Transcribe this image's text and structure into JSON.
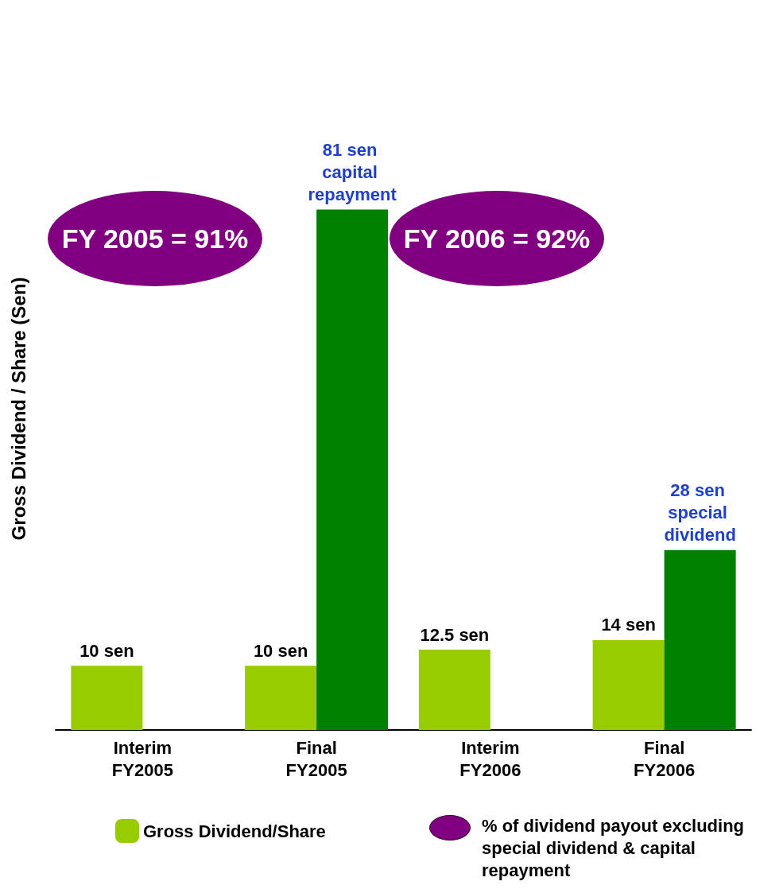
{
  "chart_data": {
    "type": "bar",
    "ylabel": "Gross Dividend / Share (Sen)",
    "categories": [
      "Interim FY2005",
      "Final FY2005",
      "Interim FY2006",
      "Final FY2006"
    ],
    "series": [
      {
        "name": "Gross Dividend/Share",
        "color": "#99cc00",
        "values": [
          10,
          10,
          12.5,
          14
        ],
        "value_labels": [
          "10 sen",
          "10 sen",
          "12.5 sen",
          "14 sen"
        ]
      },
      {
        "color": "#008000",
        "values": [
          null,
          81,
          null,
          28
        ],
        "value_labels": [
          null,
          "81 sen capital repayment",
          null,
          "28 sen special dividend"
        ]
      }
    ],
    "annotations": [
      "FY 2005 = 91%",
      "FY 2006 = 92%",
      "% of dividend payout excluding special dividend & capital repayment"
    ],
    "grid": false,
    "legend": "bottom left"
  }
}
